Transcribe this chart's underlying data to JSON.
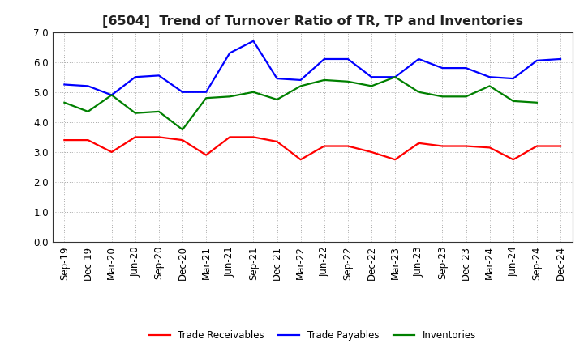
{
  "title": "[6504]  Trend of Turnover Ratio of TR, TP and Inventories",
  "x_labels": [
    "Sep-19",
    "Dec-19",
    "Mar-20",
    "Jun-20",
    "Sep-20",
    "Dec-20",
    "Mar-21",
    "Jun-21",
    "Sep-21",
    "Dec-21",
    "Mar-22",
    "Jun-22",
    "Sep-22",
    "Dec-22",
    "Mar-23",
    "Jun-23",
    "Sep-23",
    "Dec-23",
    "Mar-24",
    "Jun-24",
    "Sep-24",
    "Dec-24"
  ],
  "trade_receivables": [
    3.4,
    3.4,
    3.0,
    3.5,
    3.5,
    3.4,
    2.9,
    3.5,
    3.5,
    3.35,
    2.75,
    3.2,
    3.2,
    3.0,
    2.75,
    3.3,
    3.2,
    3.2,
    3.15,
    2.75,
    3.2,
    3.2
  ],
  "trade_payables": [
    5.25,
    5.2,
    4.9,
    5.5,
    5.55,
    5.0,
    5.0,
    6.3,
    6.7,
    5.45,
    5.4,
    6.1,
    6.1,
    5.5,
    5.5,
    6.1,
    5.8,
    5.8,
    5.5,
    5.45,
    6.05,
    6.1
  ],
  "inventories": [
    4.65,
    4.35,
    4.9,
    4.3,
    4.35,
    3.75,
    4.8,
    4.85,
    5.0,
    4.75,
    5.2,
    5.4,
    5.35,
    5.2,
    5.5,
    5.0,
    4.85,
    4.85,
    5.2,
    4.7,
    4.65,
    null
  ],
  "ylim": [
    0.0,
    7.0
  ],
  "yticks": [
    0.0,
    1.0,
    2.0,
    3.0,
    4.0,
    5.0,
    6.0,
    7.0
  ],
  "colors": {
    "trade_receivables": "#ff0000",
    "trade_payables": "#0000ff",
    "inventories": "#008000"
  },
  "legend_labels": [
    "Trade Receivables",
    "Trade Payables",
    "Inventories"
  ],
  "background_color": "#ffffff",
  "grid_color": "#aaaaaa",
  "title_fontsize": 11.5,
  "tick_fontsize": 8.5
}
